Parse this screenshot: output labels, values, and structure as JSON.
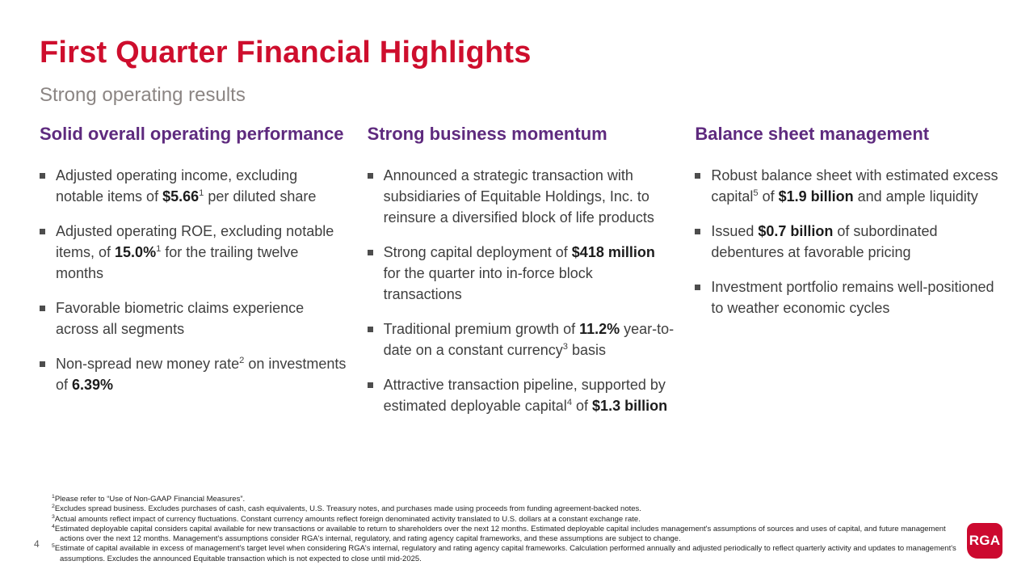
{
  "slide": {
    "title": "First Quarter Financial Highlights",
    "subtitle": "Strong operating results",
    "page_number": "4",
    "logo_text": "RGA",
    "colors": {
      "brand_red": "#CE0E2D",
      "heading_purple": "#5E2A7E",
      "body_text": "#3F3F3F",
      "subtitle_gray": "#8B8583",
      "logo_red": "#CC092F"
    }
  },
  "columns": [
    {
      "heading": "Solid overall operating performance",
      "bullets": [
        {
          "segments": [
            {
              "text": "Adjusted operating income, excluding notable items of "
            },
            {
              "text": "$5.66",
              "bold": true
            },
            {
              "text": "1",
              "sup": true
            },
            {
              "text": " per diluted share"
            }
          ]
        },
        {
          "segments": [
            {
              "text": "Adjusted operating ROE, excluding notable items, of "
            },
            {
              "text": "15.0%",
              "bold": true
            },
            {
              "text": "1",
              "sup": true
            },
            {
              "text": " for the trailing twelve months"
            }
          ]
        },
        {
          "segments": [
            {
              "text": "Favorable biometric claims experience across all segments"
            }
          ]
        },
        {
          "segments": [
            {
              "text": "Non-spread new money rate"
            },
            {
              "text": "2",
              "sup": true
            },
            {
              "text": " on investments of "
            },
            {
              "text": "6.39%",
              "bold": true
            }
          ]
        }
      ]
    },
    {
      "heading": "Strong business momentum",
      "bullets": [
        {
          "segments": [
            {
              "text": "Announced a strategic transaction with subsidiaries of Equitable Holdings, Inc. to reinsure a diversified block of life products"
            }
          ]
        },
        {
          "segments": [
            {
              "text": "Strong capital deployment of "
            },
            {
              "text": "$418 million",
              "bold": true
            },
            {
              "text": " for the quarter into in-force block transactions"
            }
          ]
        },
        {
          "segments": [
            {
              "text": "Traditional premium growth of "
            },
            {
              "text": "11.2%",
              "bold": true
            },
            {
              "text": " year-to-date on a constant currency"
            },
            {
              "text": "3",
              "sup": true
            },
            {
              "text": " basis"
            }
          ]
        },
        {
          "segments": [
            {
              "text": "Attractive transaction pipeline, supported by estimated deployable capital"
            },
            {
              "text": "4",
              "sup": true
            },
            {
              "text": " of "
            },
            {
              "text": "$1.3 billion",
              "bold": true
            }
          ]
        }
      ]
    },
    {
      "heading": "Balance sheet management",
      "bullets": [
        {
          "segments": [
            {
              "text": "Robust balance sheet with estimated excess capital"
            },
            {
              "text": "5",
              "sup": true
            },
            {
              "text": " of "
            },
            {
              "text": "$1.9 billion",
              "bold": true
            },
            {
              "text": " and ample liquidity"
            }
          ]
        },
        {
          "segments": [
            {
              "text": "Issued "
            },
            {
              "text": "$0.7 billion",
              "bold": true
            },
            {
              "text": " of subordinated debentures at favorable pricing"
            }
          ]
        },
        {
          "segments": [
            {
              "text": "Investment portfolio remains well-positioned to weather economic cycles"
            }
          ]
        }
      ]
    }
  ],
  "footnotes": [
    {
      "marker": "1",
      "text": "Please refer to “Use of Non-GAAP Financial Measures”."
    },
    {
      "marker": "2",
      "text": "Excludes spread business. Excludes purchases of cash, cash equivalents, U.S. Treasury notes, and purchases made using proceeds from funding agreement-backed notes."
    },
    {
      "marker": "3",
      "text": "Actual amounts reflect impact of currency fluctuations. Constant currency amounts reflect foreign denominated activity translated to U.S. dollars at a constant exchange rate."
    },
    {
      "marker": "4",
      "text": "Estimated deployable capital considers capital available for new transactions or available to return to shareholders over the next 12 months. Estimated deployable capital includes management's assumptions of sources and uses of capital, and future management actions over the next 12 months. Management's assumptions consider RGA's internal, regulatory, and rating agency capital frameworks, and these assumptions are subject to change."
    },
    {
      "marker": "5",
      "text": "Estimate of capital available in excess of management's target level when considering RGA's internal, regulatory and rating agency capital frameworks.  Calculation performed annually and adjusted periodically to reflect quarterly activity and updates to management's assumptions. Excludes the announced Equitable transaction which is not expected to close until mid-2025."
    }
  ]
}
